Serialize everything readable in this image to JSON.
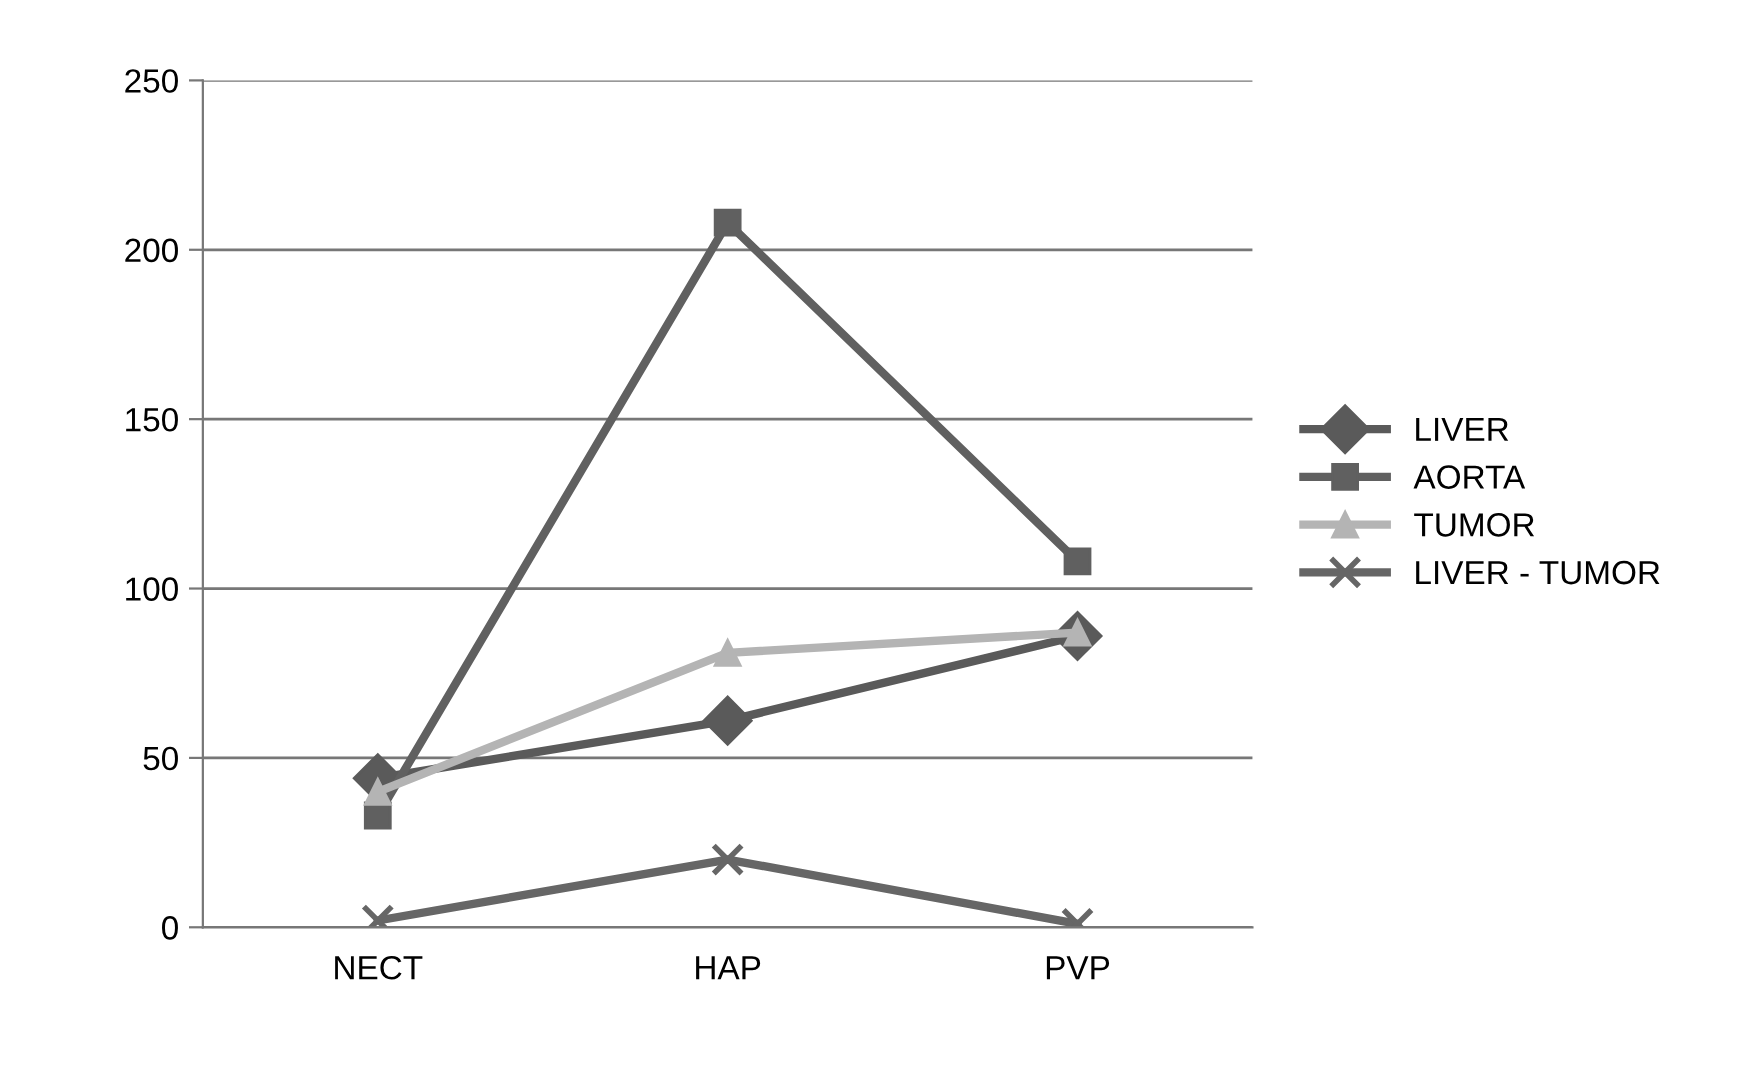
{
  "chart_data": {
    "type": "line",
    "categories": [
      "NECT",
      "HAP",
      "PVP"
    ],
    "series": [
      {
        "name": "LIVER",
        "color": "#5a5a5a",
        "marker": "diamond",
        "values": [
          44,
          61,
          86
        ]
      },
      {
        "name": "AORTA",
        "color": "#606060",
        "marker": "square",
        "values": [
          33,
          208,
          108
        ]
      },
      {
        "name": "TUMOR",
        "color": "#b4b4b4",
        "marker": "triangle",
        "values": [
          40,
          81,
          87
        ]
      },
      {
        "name": "LIVER - TUMOR",
        "color": "#666666",
        "marker": "cross",
        "values": [
          2,
          20,
          1
        ]
      }
    ],
    "ylim": [
      0,
      250
    ],
    "yticks": [
      0,
      50,
      100,
      150,
      200,
      250
    ],
    "grid": "y",
    "legend": "right",
    "line_style": "solid"
  }
}
